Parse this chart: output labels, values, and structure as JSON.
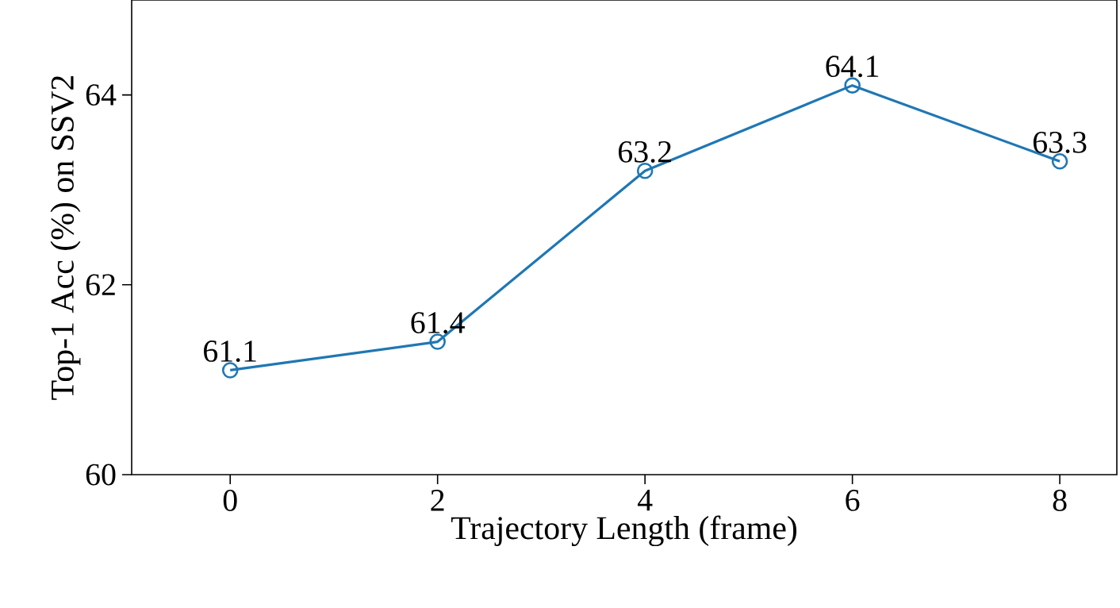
{
  "chart_data": {
    "type": "line",
    "xlabel": "Trajectory Length (frame)",
    "ylabel": "Top-1 Acc (%) on SSV2",
    "x": [
      0,
      2,
      4,
      6,
      8
    ],
    "series": [
      {
        "color": "#1f77b4",
        "values": [
          61.1,
          61.4,
          63.2,
          64.1,
          63.3
        ]
      }
    ],
    "xlim": [
      -0.95,
      8.55
    ],
    "ylim": [
      60,
      65
    ],
    "xticks": [
      0,
      2,
      4,
      6,
      8
    ],
    "yticks": [
      60,
      62,
      64
    ],
    "data_labels": true,
    "marker": "circle",
    "line_style": "solid"
  }
}
